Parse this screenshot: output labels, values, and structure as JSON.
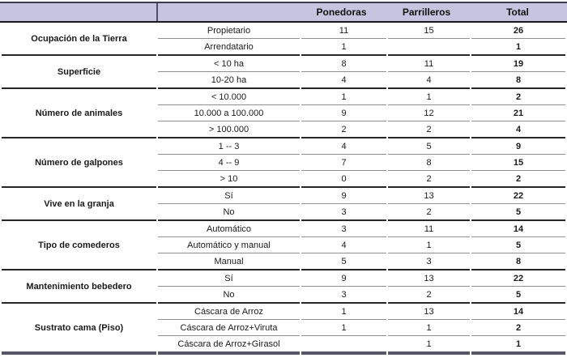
{
  "colors": {
    "header_bg": "#c6c4de",
    "header_text": "#111111",
    "top_border": "#3b3952",
    "group_line": "#26262b",
    "sub_line": "#8f8f8f",
    "bottom_bar": "#565666",
    "body_text": "#1a1a1a"
  },
  "table": {
    "header": {
      "col1": "",
      "col2": "",
      "ponedoras": "Ponedoras",
      "parrilleros": "Parrilleros",
      "total": "Total"
    },
    "groups": [
      {
        "category": "Ocupación de la Tierra",
        "rows": [
          {
            "label": "Propietario",
            "ponedoras": "11",
            "parrilleros": "15",
            "total": "26"
          },
          {
            "label": "Arrendatario",
            "ponedoras": "1",
            "parrilleros": "",
            "total": "1"
          }
        ]
      },
      {
        "category": "Superficie",
        "rows": [
          {
            "label": "< 10 ha",
            "ponedoras": "8",
            "parrilleros": "11",
            "total": "19"
          },
          {
            "label": "10-20 ha",
            "ponedoras": "4",
            "parrilleros": "4",
            "total": "8"
          }
        ]
      },
      {
        "category": "Número de animales",
        "rows": [
          {
            "label": "< 10.000",
            "ponedoras": "1",
            "parrilleros": "1",
            "total": "2"
          },
          {
            "label": "10.000 a 100.000",
            "ponedoras": "9",
            "parrilleros": "12",
            "total": "21"
          },
          {
            "label": "> 100.000",
            "ponedoras": "2",
            "parrilleros": "2",
            "total": "4"
          }
        ]
      },
      {
        "category": "Número de galpones",
        "rows": [
          {
            "label": "1 -- 3",
            "ponedoras": "4",
            "parrilleros": "5",
            "total": "9"
          },
          {
            "label": "4 -- 9",
            "ponedoras": "7",
            "parrilleros": "8",
            "total": "15"
          },
          {
            "label": "> 10",
            "ponedoras": "0",
            "parrilleros": "2",
            "total": "2"
          }
        ]
      },
      {
        "category": "Vive en la granja",
        "rows": [
          {
            "label": "Sí",
            "ponedoras": "9",
            "parrilleros": "13",
            "total": "22"
          },
          {
            "label": "No",
            "ponedoras": "3",
            "parrilleros": "2",
            "total": "5"
          }
        ]
      },
      {
        "category": "Tipo de comederos",
        "rows": [
          {
            "label": "Automático",
            "ponedoras": "3",
            "parrilleros": "11",
            "total": "14"
          },
          {
            "label": "Automático y manual",
            "ponedoras": "4",
            "parrilleros": "1",
            "total": "5"
          },
          {
            "label": "Manual",
            "ponedoras": "5",
            "parrilleros": "3",
            "total": "8"
          }
        ]
      },
      {
        "category": "Mantenimiento bebedero",
        "rows": [
          {
            "label": "Sí",
            "ponedoras": "9",
            "parrilleros": "13",
            "total": "22"
          },
          {
            "label": "No",
            "ponedoras": "3",
            "parrilleros": "2",
            "total": "5"
          }
        ]
      },
      {
        "category": "Sustrato cama (Piso)",
        "rows": [
          {
            "label": "Cáscara de Arroz",
            "ponedoras": "1",
            "parrilleros": "13",
            "total": "14"
          },
          {
            "label": "Cáscara de Arroz+Viruta",
            "ponedoras": "1",
            "parrilleros": "1",
            "total": "2"
          },
          {
            "label": "Cáscara de Arroz+Girasol",
            "ponedoras": "",
            "parrilleros": "1",
            "total": "1"
          }
        ]
      }
    ]
  }
}
